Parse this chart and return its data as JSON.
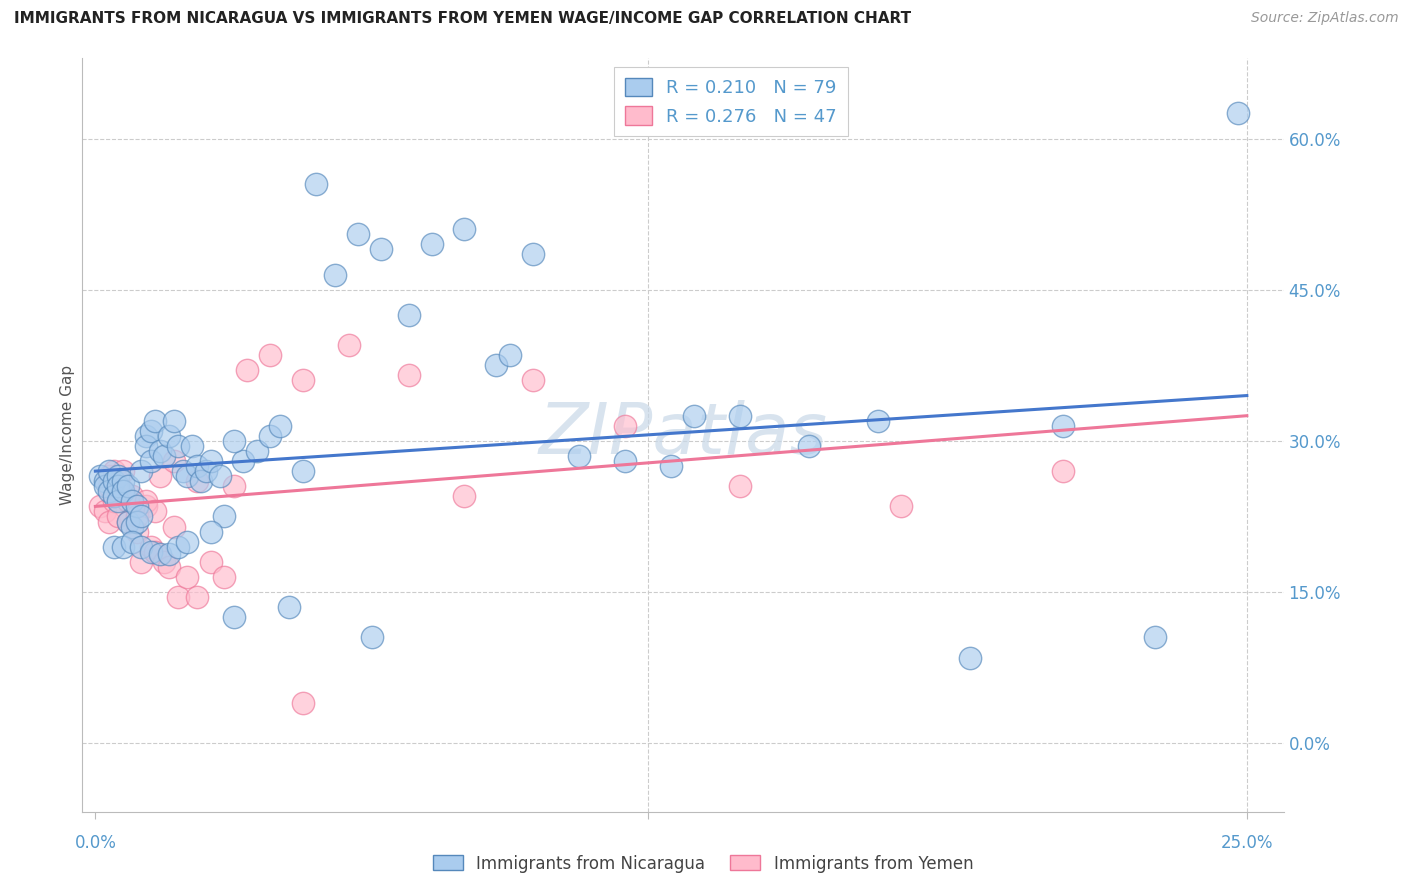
{
  "title": "IMMIGRANTS FROM NICARAGUA VS IMMIGRANTS FROM YEMEN WAGE/INCOME GAP CORRELATION CHART",
  "source": "Source: ZipAtlas.com",
  "ylabel": "Wage/Income Gap",
  "nicaragua_R": 0.21,
  "nicaragua_N": 79,
  "yemen_R": 0.276,
  "yemen_N": 47,
  "watermark": "ZIPatlas",
  "xmin": -0.003,
  "xmax": 0.258,
  "ymin": -0.068,
  "ymax": 0.68,
  "ytick_vals": [
    0.0,
    0.15,
    0.3,
    0.45,
    0.6
  ],
  "yticklabels": [
    "0.0%",
    "15.0%",
    "30.0%",
    "45.0%",
    "60.0%"
  ],
  "xtick_left_val": 0.0,
  "xtick_right_val": 0.25,
  "xtick_left_label": "0.0%",
  "xtick_right_label": "25.0%",
  "nic_color_face": "#AACCEE",
  "nic_color_edge": "#5588BB",
  "yem_color_face": "#FFBBCC",
  "yem_color_edge": "#EE7799",
  "line_blue": "#4477CC",
  "line_pink": "#EE7799",
  "grid_color": "#CCCCCC",
  "tick_color": "#5599CC",
  "nic_line_y0": 0.27,
  "nic_line_y1": 0.345,
  "yem_line_y0": 0.235,
  "yem_line_y1": 0.325,
  "nic_x": [
    0.001,
    0.002,
    0.002,
    0.003,
    0.003,
    0.004,
    0.004,
    0.005,
    0.005,
    0.005,
    0.006,
    0.006,
    0.007,
    0.007,
    0.008,
    0.008,
    0.009,
    0.009,
    0.01,
    0.01,
    0.011,
    0.011,
    0.012,
    0.012,
    0.013,
    0.014,
    0.015,
    0.016,
    0.017,
    0.018,
    0.019,
    0.02,
    0.021,
    0.022,
    0.023,
    0.024,
    0.025,
    0.027,
    0.028,
    0.03,
    0.032,
    0.035,
    0.038,
    0.042,
    0.045,
    0.048,
    0.052,
    0.057,
    0.062,
    0.068,
    0.073,
    0.08,
    0.087,
    0.095,
    0.105,
    0.115,
    0.125,
    0.14,
    0.155,
    0.17,
    0.19,
    0.21,
    0.23,
    0.248,
    0.004,
    0.006,
    0.008,
    0.01,
    0.012,
    0.014,
    0.016,
    0.018,
    0.02,
    0.025,
    0.03,
    0.04,
    0.06,
    0.09,
    0.13
  ],
  "nic_y": [
    0.265,
    0.26,
    0.255,
    0.27,
    0.25,
    0.26,
    0.245,
    0.265,
    0.255,
    0.24,
    0.26,
    0.25,
    0.255,
    0.22,
    0.24,
    0.215,
    0.235,
    0.22,
    0.27,
    0.225,
    0.305,
    0.295,
    0.31,
    0.28,
    0.32,
    0.29,
    0.285,
    0.305,
    0.32,
    0.295,
    0.27,
    0.265,
    0.295,
    0.275,
    0.26,
    0.27,
    0.28,
    0.265,
    0.225,
    0.125,
    0.28,
    0.29,
    0.305,
    0.135,
    0.27,
    0.555,
    0.465,
    0.505,
    0.49,
    0.425,
    0.495,
    0.51,
    0.375,
    0.485,
    0.285,
    0.28,
    0.275,
    0.325,
    0.295,
    0.32,
    0.085,
    0.315,
    0.105,
    0.625,
    0.195,
    0.195,
    0.2,
    0.195,
    0.19,
    0.188,
    0.188,
    0.195,
    0.2,
    0.21,
    0.3,
    0.315,
    0.105,
    0.385,
    0.325
  ],
  "yem_x": [
    0.001,
    0.002,
    0.003,
    0.003,
    0.004,
    0.004,
    0.005,
    0.005,
    0.006,
    0.006,
    0.007,
    0.008,
    0.009,
    0.01,
    0.011,
    0.012,
    0.013,
    0.014,
    0.015,
    0.016,
    0.017,
    0.018,
    0.02,
    0.022,
    0.025,
    0.028,
    0.033,
    0.038,
    0.045,
    0.055,
    0.068,
    0.08,
    0.095,
    0.115,
    0.14,
    0.175,
    0.21,
    0.003,
    0.005,
    0.007,
    0.009,
    0.011,
    0.013,
    0.017,
    0.022,
    0.03,
    0.045
  ],
  "yem_y": [
    0.235,
    0.23,
    0.265,
    0.22,
    0.27,
    0.24,
    0.26,
    0.225,
    0.27,
    0.25,
    0.22,
    0.245,
    0.21,
    0.18,
    0.235,
    0.195,
    0.19,
    0.265,
    0.18,
    0.175,
    0.215,
    0.145,
    0.165,
    0.26,
    0.18,
    0.165,
    0.37,
    0.385,
    0.36,
    0.395,
    0.365,
    0.245,
    0.36,
    0.315,
    0.255,
    0.235,
    0.27,
    0.255,
    0.25,
    0.24,
    0.225,
    0.24,
    0.23,
    0.28,
    0.145,
    0.255,
    0.04
  ]
}
